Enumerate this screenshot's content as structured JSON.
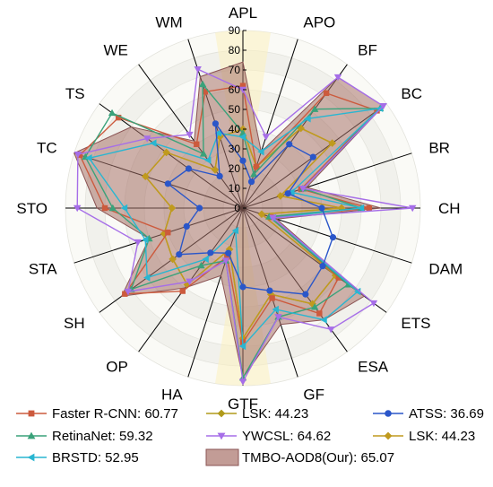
{
  "chart_data": {
    "type": "radar",
    "categories": [
      "APL",
      "APO",
      "BF",
      "BC",
      "BR",
      "CH",
      "DAM",
      "ETS",
      "ESA",
      "GF",
      "GTF",
      "HA",
      "OP",
      "SH",
      "STA",
      "STO",
      "TC",
      "TS",
      "WE",
      "WM"
    ],
    "r_ticks": [
      0,
      10,
      20,
      30,
      40,
      50,
      60,
      70,
      80,
      90
    ],
    "r_range": [
      0,
      90
    ],
    "series": [
      {
        "name": "Faster R-CNN",
        "score": "60.77",
        "label": "Faster R-CNN: 60.77",
        "color": "#cc5a3d",
        "marker": "square",
        "values": [
          62,
          22,
          72,
          84,
          31,
          64,
          15,
          60,
          66,
          48,
          68,
          26,
          52,
          74,
          40,
          70,
          87,
          78,
          40,
          62
        ]
      },
      {
        "name": "RetinaNet",
        "score": "59.32",
        "label": "RetinaNet: 59.32",
        "color": "#3aa27a",
        "marker": "triangle-up",
        "values": [
          38,
          18,
          62,
          86,
          32,
          60,
          14,
          66,
          62,
          58,
          86,
          28,
          36,
          70,
          50,
          66,
          84,
          82,
          34,
          66
        ]
      },
      {
        "name": "BRSTD",
        "score": "52.95",
        "label": "BRSTD: 52.95",
        "color": "#29b6d1",
        "marker": "triangle-left",
        "values": [
          36,
          30,
          56,
          86,
          26,
          60,
          16,
          72,
          70,
          54,
          70,
          12,
          32,
          60,
          52,
          60,
          82,
          56,
          30,
          40
        ]
      },
      {
        "name": "LSK",
        "score": "44.23",
        "label": "LSK: 44.23",
        "color": "#b09a1a",
        "marker": "diamond",
        "values": [
          40,
          22,
          50,
          56,
          20,
          50,
          10,
          58,
          60,
          46,
          66,
          22,
          48,
          44,
          42,
          36,
          52,
          48,
          24,
          38
        ]
      },
      {
        "name": "YWCSL",
        "score": "64.62",
        "label": "YWCSL: 64.62",
        "color": "#a66ee8",
        "marker": "triangle-down",
        "values": [
          60,
          38,
          82,
          88,
          32,
          86,
          16,
          82,
          76,
          58,
          88,
          28,
          46,
          72,
          56,
          84,
          88,
          60,
          46,
          74
        ]
      },
      {
        "name": "ATSS",
        "score": "36.69",
        "label": "ATSS: 36.69",
        "color": "#2a56c9",
        "marker": "circle",
        "values": [
          24,
          14,
          40,
          44,
          24,
          40,
          48,
          50,
          54,
          44,
          40,
          24,
          28,
          40,
          30,
          22,
          40,
          34,
          20,
          45
        ]
      },
      {
        "name": "LSK",
        "score": "44.23",
        "label": "LSK: 44.23",
        "color": "#c09a1e",
        "marker": "diamond",
        "values": [
          40,
          22,
          50,
          56,
          20,
          50,
          10,
          58,
          60,
          46,
          66,
          22,
          48,
          44,
          42,
          36,
          52,
          48,
          24,
          38
        ]
      },
      {
        "name": "TMBO-AOD8(Our)",
        "score": "65.07",
        "label": "TMBO-AOD8(Our): 65.07",
        "color": "#8b5454",
        "marker": "fill",
        "values": [
          74,
          30,
          82,
          88,
          34,
          70,
          18,
          76,
          70,
          62,
          86,
          36,
          50,
          76,
          50,
          74,
          90,
          70,
          42,
          70
        ]
      }
    ]
  }
}
